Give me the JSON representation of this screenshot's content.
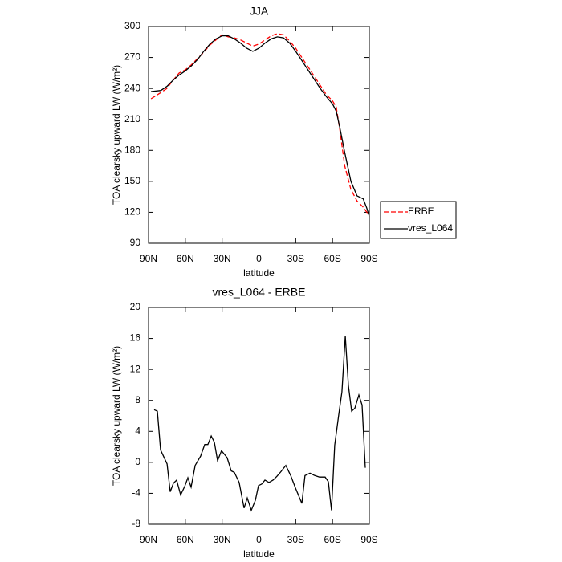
{
  "chart_data": [
    {
      "type": "line",
      "title": "JJA",
      "x_label": "latitude",
      "y_label": "TOA clearsky upward LW (W/m²)",
      "xlim": [
        90,
        -90
      ],
      "xticks": [
        {
          "value": 90,
          "label": "90N"
        },
        {
          "value": 60,
          "label": "60N"
        },
        {
          "value": 30,
          "label": "30N"
        },
        0,
        {
          "value": -30,
          "label": "30S"
        },
        {
          "value": -60,
          "label": "60S"
        },
        {
          "value": -90,
          "label": "90S"
        }
      ],
      "ylim": [
        90,
        300
      ],
      "yticks": [
        90,
        120,
        150,
        180,
        210,
        240,
        270,
        300
      ],
      "legend": "right",
      "x": [
        88,
        80,
        75,
        70,
        65,
        60,
        55,
        50,
        45,
        40,
        35,
        30,
        25,
        20,
        15,
        10,
        5,
        0,
        -5,
        -10,
        -15,
        -20,
        -25,
        -30,
        -35,
        -40,
        -45,
        -50,
        -55,
        -60,
        -63,
        -66,
        -70,
        -75,
        -80,
        -85,
        -88,
        -90
      ],
      "series": [
        {
          "name": "ERBE",
          "color": "#ff0000",
          "linestyle": "dashed",
          "values": [
            230,
            236,
            240,
            248,
            255,
            258,
            263,
            269,
            275,
            282,
            287,
            292,
            290,
            289,
            287,
            284,
            281,
            283,
            287,
            291,
            293,
            292,
            286,
            279,
            270,
            261,
            252,
            243,
            234,
            228,
            222,
            200,
            165,
            142,
            131,
            125,
            120,
            117
          ]
        },
        {
          "name": "vres_L064",
          "color": "#000000",
          "linestyle": "solid",
          "values": [
            237,
            238,
            242,
            248,
            253,
            257,
            262,
            268,
            276,
            283,
            288,
            291,
            291,
            288,
            284,
            279,
            276,
            279,
            284,
            288,
            290,
            289,
            284,
            276,
            267,
            258,
            249,
            240,
            232,
            225,
            218,
            202,
            178,
            150,
            136,
            133,
            124,
            116
          ]
        }
      ]
    },
    {
      "type": "line",
      "title": "vres_L064 - ERBE",
      "x_label": "latitude",
      "y_label": "TOA clearsky upward LW (W/m²)",
      "xlim": [
        90,
        -90
      ],
      "xticks": [
        {
          "value": 90,
          "label": "90N"
        },
        {
          "value": 60,
          "label": "60N"
        },
        {
          "value": 30,
          "label": "30N"
        },
        0,
        {
          "value": -30,
          "label": "30S"
        },
        {
          "value": -60,
          "label": "60S"
        },
        {
          "value": -90,
          "label": "90S"
        }
      ],
      "ylim": [
        -8,
        20
      ],
      "yticks": [
        -8,
        -4,
        0,
        4,
        8,
        12,
        16,
        20
      ],
      "x": [
        85.4,
        82.8,
        80.2,
        74.9,
        72.3,
        69.7,
        67.1,
        63.8,
        60.5,
        57.9,
        55.3,
        52.0,
        47.5,
        44.2,
        41.6,
        38.9,
        36.3,
        33.7,
        30.5,
        25.9,
        22.6,
        20.0,
        16.1,
        12.1,
        9.5,
        6.2,
        2.9,
        0.3,
        -2.3,
        -4.9,
        -8.2,
        -11.5,
        -14.7,
        -18.0,
        -21.9,
        -25.9,
        -29.8,
        -35.0,
        -37.6,
        -41.6,
        -45.5,
        -49.4,
        -54.0,
        -56.6,
        -59.2,
        -61.8,
        -65.1,
        -67.7,
        -70.4,
        -73.0,
        -75.6,
        -78.2,
        -81.5,
        -84.1,
        -86.7
      ],
      "color": "#000000",
      "values": [
        6.8,
        6.6,
        1.6,
        -0.2,
        -3.8,
        -2.7,
        -2.3,
        -4.2,
        -3.1,
        -2.0,
        -3.2,
        -0.4,
        0.8,
        2.3,
        2.3,
        3.4,
        2.6,
        0.2,
        1.5,
        0.6,
        -1.1,
        -1.3,
        -2.6,
        -5.9,
        -4.6,
        -6.2,
        -4.9,
        -3.0,
        -2.8,
        -2.3,
        -2.6,
        -2.3,
        -1.8,
        -1.2,
        -0.4,
        -1.7,
        -3.3,
        -5.3,
        -1.7,
        -1.4,
        -1.7,
        -1.9,
        -1.9,
        -2.5,
        -6.2,
        2.2,
        6.2,
        9.1,
        16.3,
        9.9,
        6.6,
        7.0,
        8.7,
        7.4,
        -0.7
      ]
    }
  ]
}
